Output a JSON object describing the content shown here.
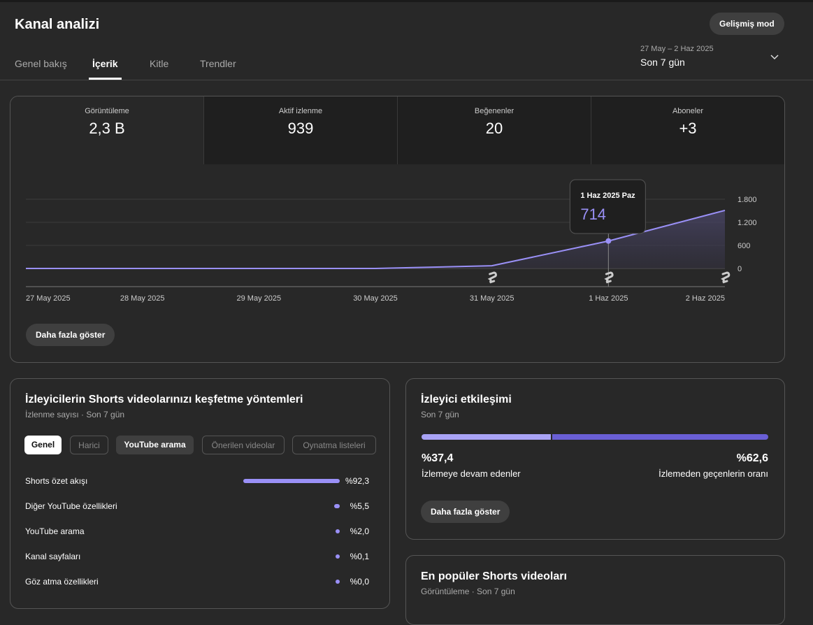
{
  "header": {
    "title": "Kanal analizi",
    "advanced_button": "Gelişmiş mod"
  },
  "tabs": [
    "Genel bakış",
    "İçerik",
    "Kitle",
    "Trendler"
  ],
  "date_range": {
    "dates": "27 May – 2 Haz 2025",
    "label": "Son 7 gün"
  },
  "metrics": [
    {
      "label": "Görüntüleme",
      "value": "2,3 B"
    },
    {
      "label": "Aktif izlenme",
      "value": "939"
    },
    {
      "label": "Beğenenler",
      "value": "20"
    },
    {
      "label": "Aboneler",
      "value": "+3"
    }
  ],
  "chart_data": {
    "type": "line",
    "categories": [
      "27 May 2025",
      "28 May 2025",
      "29 May 2025",
      "30 May 2025",
      "31 May 2025",
      "1 Haz 2025",
      "2 Haz 2025"
    ],
    "series": [
      {
        "name": "Görüntüleme",
        "color": "#9a90f7",
        "values": [
          0,
          0,
          0,
          0,
          70,
          714,
          1510
        ]
      }
    ],
    "ylim": [
      0,
      1800
    ],
    "yticks": [
      0,
      600,
      {
        "value": 1200,
        "label": "1.200"
      },
      {
        "value": 1800,
        "label": "1.800"
      }
    ],
    "grid": true,
    "tooltip": {
      "title": "1 Haz 2025 Paz"
    }
  },
  "show_more": "Daha fazla göster",
  "discovery": {
    "title": "İzleyicilerin Shorts videolarınızı keşfetme yöntemleri",
    "subtitle": "İzlenme sayısı · Son 7 gün",
    "chips": [
      "Genel",
      "Harici",
      "YouTube arama",
      "Önerilen videolar",
      "Oynatma listeleri"
    ],
    "labels": [
      "Shorts özet akışı",
      "Diğer YouTube özellikleri",
      "YouTube arama",
      "Kanal sayfaları",
      "Göz atma özellikleri"
    ],
    "values": [
      92.3,
      5.5,
      2.0,
      0.1,
      0.0
    ],
    "value_labels": [
      "%92,3",
      "%5,5",
      "%2,0",
      "%0,1",
      "%0,0"
    ]
  },
  "engagement": {
    "title": "İzleyici etkileşimi",
    "subtitle": "Son 7 gün",
    "values": [
      37.4,
      62.6
    ],
    "value_labels": [
      "%37,4",
      "%62,6"
    ],
    "labels": [
      "İzlemeye devam edenler",
      "İzlemeden geçenlerin oranı"
    ],
    "button": "Daha fazla göster"
  },
  "popular": {
    "title": "En popüler Shorts videoları",
    "subtitle": "Görüntüleme · Son 7 gün"
  }
}
